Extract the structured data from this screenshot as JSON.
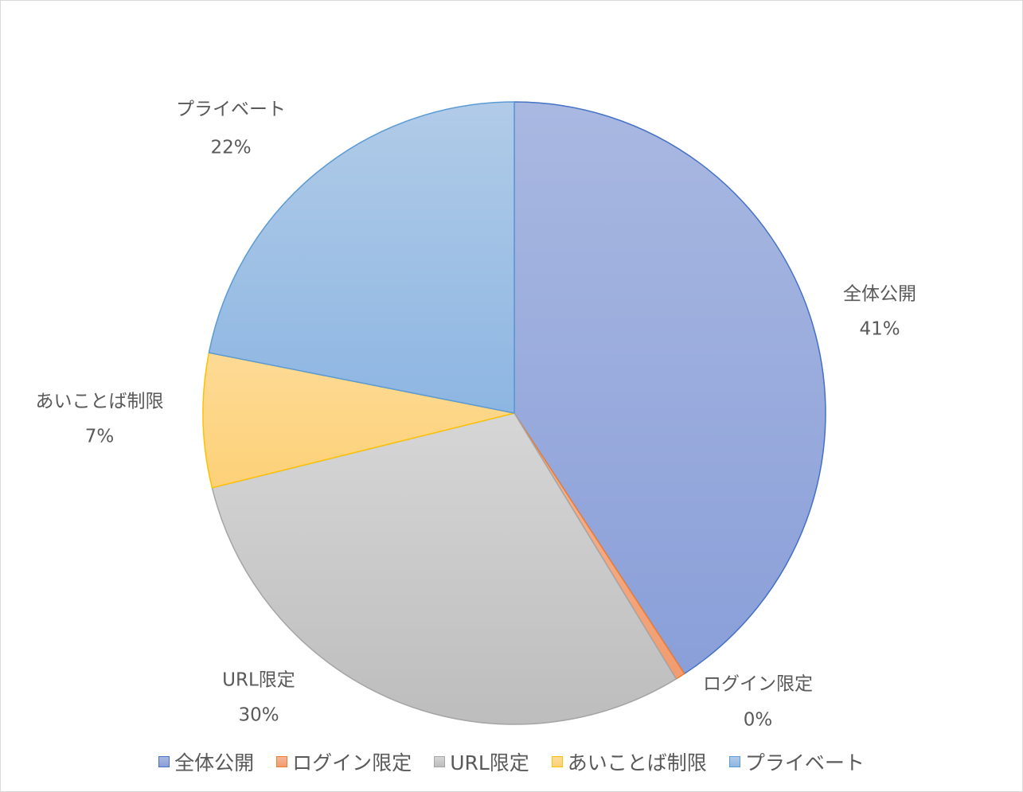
{
  "chart_data": {
    "type": "pie",
    "title": "",
    "categories": [
      "全体公開",
      "ログイン限定",
      "URL限定",
      "あいことば制限",
      "プライベート"
    ],
    "values": [
      41,
      0.5,
      30,
      7,
      22
    ],
    "percent_labels": [
      "41%",
      "0%",
      "30%",
      "7%",
      "22%"
    ],
    "legend_position": "bottom",
    "colors": {
      "fill_top": [
        "#a9b8e1",
        "#f6b698",
        "#d6d6d6",
        "#fdda95",
        "#b1cbe8"
      ],
      "fill_bottom": [
        "#8a9fd9",
        "#f29c6f",
        "#bdbdbd",
        "#fdd178",
        "#8db6e2"
      ],
      "stroke": [
        "#4472c4",
        "#ed7d31",
        "#a5a5a5",
        "#ffc000",
        "#5b9bd5"
      ]
    }
  }
}
